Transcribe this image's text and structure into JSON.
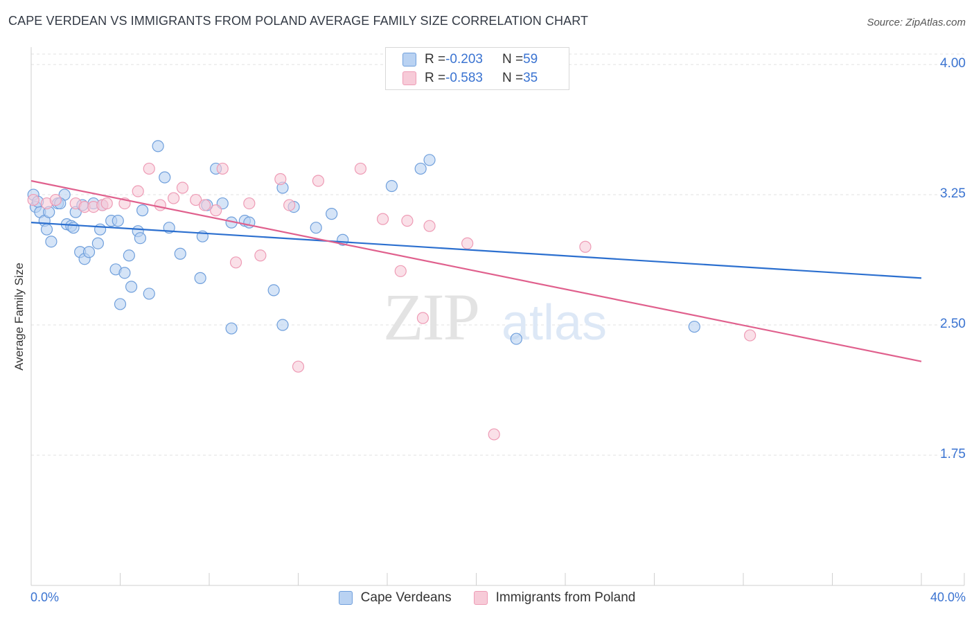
{
  "title": "CAPE VERDEAN VS IMMIGRANTS FROM POLAND AVERAGE FAMILY SIZE CORRELATION CHART",
  "source": "Source: ZipAtlas.com",
  "watermark": {
    "zip": "ZIP",
    "atlas": "atlas"
  },
  "legend_top": [
    {
      "r_label": "R = ",
      "r_value": "-0.203",
      "n_label": "N = ",
      "n_value": "59"
    },
    {
      "r_label": "R = ",
      "r_value": "-0.583",
      "n_label": "N = ",
      "n_value": "35"
    }
  ],
  "chart_data": {
    "type": "scatter",
    "title": "CAPE VERDEAN VS IMMIGRANTS FROM POLAND AVERAGE FAMILY SIZE CORRELATION CHART",
    "xlabel": "",
    "ylabel": "Average Family Size",
    "xlim": [
      0,
      40
    ],
    "ylim": [
      1.0,
      4.1
    ],
    "x_tick_labels": [
      "0.0%",
      "40.0%"
    ],
    "y_ticks": [
      1.75,
      2.5,
      3.25,
      4.0
    ],
    "y_tick_labels": [
      "1.75",
      "2.50",
      "3.25",
      "4.00"
    ],
    "grid": "horizontal dashed",
    "legend_position": "bottom-center",
    "series": [
      {
        "name": "Cape Verdeans",
        "color": "#6f9fdc",
        "fill": "#b9d2f2",
        "line_color": "#2b6fcf",
        "trend": {
          "x": [
            0,
            40
          ],
          "y": [
            3.09,
            2.77
          ]
        },
        "points": [
          [
            0.1,
            3.25
          ],
          [
            0.2,
            3.18
          ],
          [
            0.4,
            3.15
          ],
          [
            0.6,
            3.1
          ],
          [
            0.7,
            3.05
          ],
          [
            0.8,
            3.15
          ],
          [
            0.9,
            2.98
          ],
          [
            1.2,
            3.2
          ],
          [
            1.5,
            3.25
          ],
          [
            1.6,
            3.08
          ],
          [
            1.8,
            3.07
          ],
          [
            1.9,
            3.06
          ],
          [
            2.0,
            3.15
          ],
          [
            2.2,
            2.92
          ],
          [
            2.3,
            3.19
          ],
          [
            2.4,
            2.88
          ],
          [
            2.6,
            2.92
          ],
          [
            2.8,
            3.2
          ],
          [
            3.0,
            2.97
          ],
          [
            3.1,
            3.05
          ],
          [
            3.2,
            3.19
          ],
          [
            3.6,
            3.1
          ],
          [
            3.8,
            2.82
          ],
          [
            3.9,
            3.1
          ],
          [
            4.0,
            2.62
          ],
          [
            4.2,
            2.8
          ],
          [
            4.4,
            2.9
          ],
          [
            4.5,
            2.72
          ],
          [
            4.8,
            3.04
          ],
          [
            4.9,
            3.0
          ],
          [
            5.0,
            3.16
          ],
          [
            5.3,
            2.68
          ],
          [
            5.7,
            3.53
          ],
          [
            6.0,
            3.35
          ],
          [
            6.2,
            3.06
          ],
          [
            6.7,
            2.91
          ],
          [
            7.6,
            2.77
          ],
          [
            7.7,
            3.01
          ],
          [
            7.9,
            3.19
          ],
          [
            8.3,
            3.4
          ],
          [
            8.6,
            3.2
          ],
          [
            9.0,
            2.48
          ],
          [
            9.0,
            3.09
          ],
          [
            9.6,
            3.1
          ],
          [
            9.8,
            3.09
          ],
          [
            10.9,
            2.7
          ],
          [
            11.3,
            3.29
          ],
          [
            11.3,
            2.5
          ],
          [
            11.8,
            3.18
          ],
          [
            12.8,
            3.06
          ],
          [
            13.5,
            3.14
          ],
          [
            14.0,
            2.99
          ],
          [
            16.2,
            3.3
          ],
          [
            17.5,
            3.4
          ],
          [
            17.9,
            3.45
          ],
          [
            21.8,
            2.42
          ],
          [
            29.8,
            2.49
          ],
          [
            1.3,
            3.2
          ],
          [
            0.3,
            3.21
          ]
        ]
      },
      {
        "name": "Immigrants from Poland",
        "color": "#ee9bb5",
        "fill": "#f7cbd8",
        "line_color": "#e0608d",
        "trend": {
          "x": [
            0,
            40
          ],
          "y": [
            3.33,
            2.29
          ]
        },
        "points": [
          [
            0.1,
            3.22
          ],
          [
            0.7,
            3.2
          ],
          [
            1.1,
            3.22
          ],
          [
            2.0,
            3.2
          ],
          [
            2.4,
            3.18
          ],
          [
            2.8,
            3.18
          ],
          [
            3.2,
            3.19
          ],
          [
            3.4,
            3.2
          ],
          [
            4.2,
            3.2
          ],
          [
            4.8,
            3.27
          ],
          [
            5.3,
            3.4
          ],
          [
            5.8,
            3.19
          ],
          [
            6.4,
            3.23
          ],
          [
            6.8,
            3.29
          ],
          [
            7.4,
            3.22
          ],
          [
            7.8,
            3.19
          ],
          [
            8.3,
            3.16
          ],
          [
            8.6,
            3.4
          ],
          [
            9.2,
            2.86
          ],
          [
            9.8,
            3.2
          ],
          [
            10.3,
            2.9
          ],
          [
            11.2,
            3.34
          ],
          [
            11.6,
            3.19
          ],
          [
            12.0,
            2.26
          ],
          [
            12.9,
            3.33
          ],
          [
            14.8,
            3.4
          ],
          [
            15.8,
            3.11
          ],
          [
            16.6,
            2.81
          ],
          [
            16.9,
            3.1
          ],
          [
            17.6,
            2.54
          ],
          [
            17.9,
            3.07
          ],
          [
            19.6,
            2.97
          ],
          [
            20.8,
            1.87
          ],
          [
            24.9,
            2.95
          ],
          [
            32.3,
            2.44
          ]
        ]
      }
    ]
  }
}
